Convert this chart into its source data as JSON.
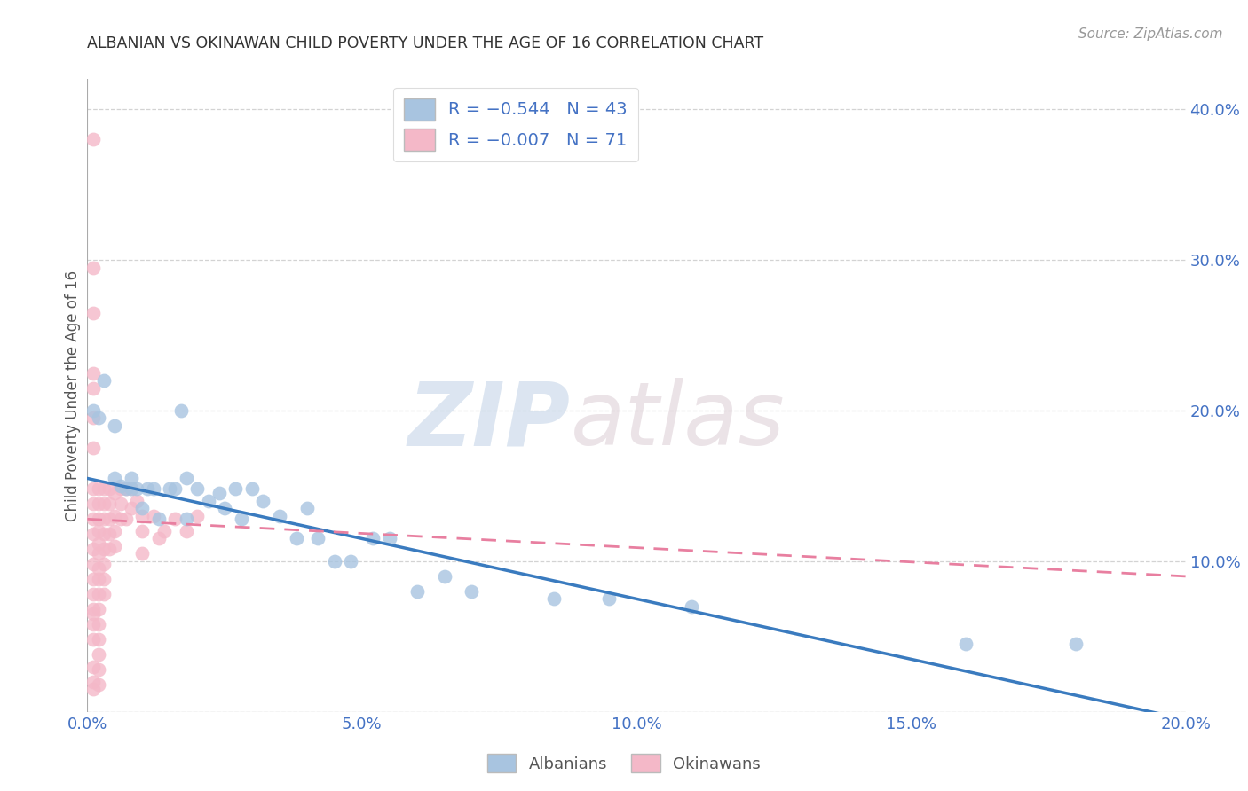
{
  "title": "ALBANIAN VS OKINAWAN CHILD POVERTY UNDER THE AGE OF 16 CORRELATION CHART",
  "source": "Source: ZipAtlas.com",
  "ylabel": "Child Poverty Under the Age of 16",
  "xlim": [
    0.0,
    0.2
  ],
  "ylim": [
    0.0,
    0.42
  ],
  "xticks": [
    0.0,
    0.05,
    0.1,
    0.15,
    0.2
  ],
  "xtick_labels": [
    "0.0%",
    "5.0%",
    "10.0%",
    "15.0%",
    "20.0%"
  ],
  "yticks": [
    0.0,
    0.1,
    0.2,
    0.3,
    0.4
  ],
  "ytick_labels_right": [
    "",
    "10.0%",
    "20.0%",
    "30.0%",
    "40.0%"
  ],
  "albanian_color": "#a8c4e0",
  "okinawan_color": "#f4b8c8",
  "albanian_line_color": "#3a7bbf",
  "okinawan_line_color": "#e87fa0",
  "watermark_zip": "ZIP",
  "watermark_atlas": "atlas",
  "background_color": "#ffffff",
  "albanian_x": [
    0.001,
    0.002,
    0.003,
    0.005,
    0.005,
    0.006,
    0.007,
    0.008,
    0.008,
    0.009,
    0.01,
    0.011,
    0.012,
    0.013,
    0.015,
    0.016,
    0.017,
    0.018,
    0.018,
    0.02,
    0.022,
    0.024,
    0.025,
    0.027,
    0.028,
    0.03,
    0.032,
    0.035,
    0.038,
    0.04,
    0.042,
    0.045,
    0.048,
    0.052,
    0.055,
    0.06,
    0.065,
    0.07,
    0.085,
    0.095,
    0.11,
    0.16,
    0.18
  ],
  "albanian_y": [
    0.2,
    0.195,
    0.22,
    0.155,
    0.19,
    0.15,
    0.148,
    0.148,
    0.155,
    0.148,
    0.135,
    0.148,
    0.148,
    0.128,
    0.148,
    0.148,
    0.2,
    0.128,
    0.155,
    0.148,
    0.14,
    0.145,
    0.135,
    0.148,
    0.128,
    0.148,
    0.14,
    0.13,
    0.115,
    0.135,
    0.115,
    0.1,
    0.1,
    0.115,
    0.115,
    0.08,
    0.09,
    0.08,
    0.075,
    0.075,
    0.07,
    0.045,
    0.045
  ],
  "okinawan_x": [
    0.001,
    0.001,
    0.001,
    0.001,
    0.001,
    0.001,
    0.001,
    0.001,
    0.001,
    0.001,
    0.001,
    0.001,
    0.001,
    0.001,
    0.001,
    0.001,
    0.001,
    0.001,
    0.001,
    0.001,
    0.001,
    0.001,
    0.002,
    0.002,
    0.002,
    0.002,
    0.002,
    0.002,
    0.002,
    0.002,
    0.002,
    0.002,
    0.002,
    0.002,
    0.002,
    0.002,
    0.002,
    0.003,
    0.003,
    0.003,
    0.003,
    0.003,
    0.003,
    0.003,
    0.003,
    0.004,
    0.004,
    0.004,
    0.004,
    0.004,
    0.005,
    0.005,
    0.005,
    0.005,
    0.006,
    0.006,
    0.006,
    0.007,
    0.007,
    0.008,
    0.008,
    0.009,
    0.01,
    0.01,
    0.01,
    0.012,
    0.013,
    0.014,
    0.016,
    0.018,
    0.02
  ],
  "okinawan_y": [
    0.38,
    0.295,
    0.265,
    0.225,
    0.215,
    0.195,
    0.175,
    0.148,
    0.138,
    0.128,
    0.118,
    0.108,
    0.098,
    0.088,
    0.078,
    0.068,
    0.065,
    0.058,
    0.048,
    0.03,
    0.02,
    0.015,
    0.148,
    0.138,
    0.128,
    0.12,
    0.112,
    0.105,
    0.095,
    0.088,
    0.078,
    0.068,
    0.058,
    0.048,
    0.038,
    0.028,
    0.018,
    0.148,
    0.138,
    0.128,
    0.118,
    0.108,
    0.098,
    0.088,
    0.078,
    0.148,
    0.138,
    0.128,
    0.118,
    0.108,
    0.145,
    0.13,
    0.12,
    0.11,
    0.148,
    0.138,
    0.128,
    0.148,
    0.128,
    0.148,
    0.135,
    0.14,
    0.13,
    0.12,
    0.105,
    0.13,
    0.115,
    0.12,
    0.128,
    0.12,
    0.13
  ]
}
